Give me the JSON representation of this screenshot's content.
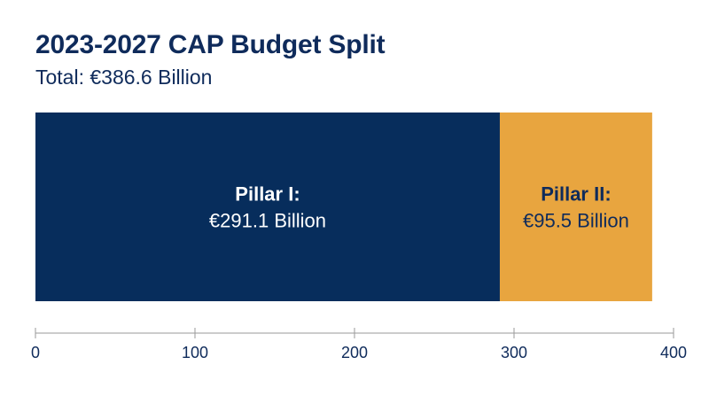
{
  "title": "2023-2027 CAP Budget Split",
  "subtitle": "Total: €386.6 Billion",
  "colors": {
    "pillar1": "#072d5c",
    "pillar2": "#e8a53f",
    "title": "#0f2b5b",
    "axis": "#9a9a9a"
  },
  "chart_data": {
    "type": "bar",
    "orientation": "horizontal",
    "stacked": true,
    "title": "2023-2027 CAP Budget Split",
    "subtitle": "Total: €386.6 Billion",
    "xlabel": "",
    "ylabel": "",
    "xlim": [
      0,
      400
    ],
    "xticks": [
      0,
      100,
      200,
      300,
      400
    ],
    "grid": false,
    "series": [
      {
        "name": "Pillar I:",
        "value": 291.1,
        "label": "€291.1 Billion",
        "color": "#072d5c",
        "text_color": "#ffffff"
      },
      {
        "name": "Pillar II:",
        "value": 95.5,
        "label": "€95.5 Billion",
        "color": "#e8a53f",
        "text_color": "#0f2b5b"
      }
    ]
  }
}
